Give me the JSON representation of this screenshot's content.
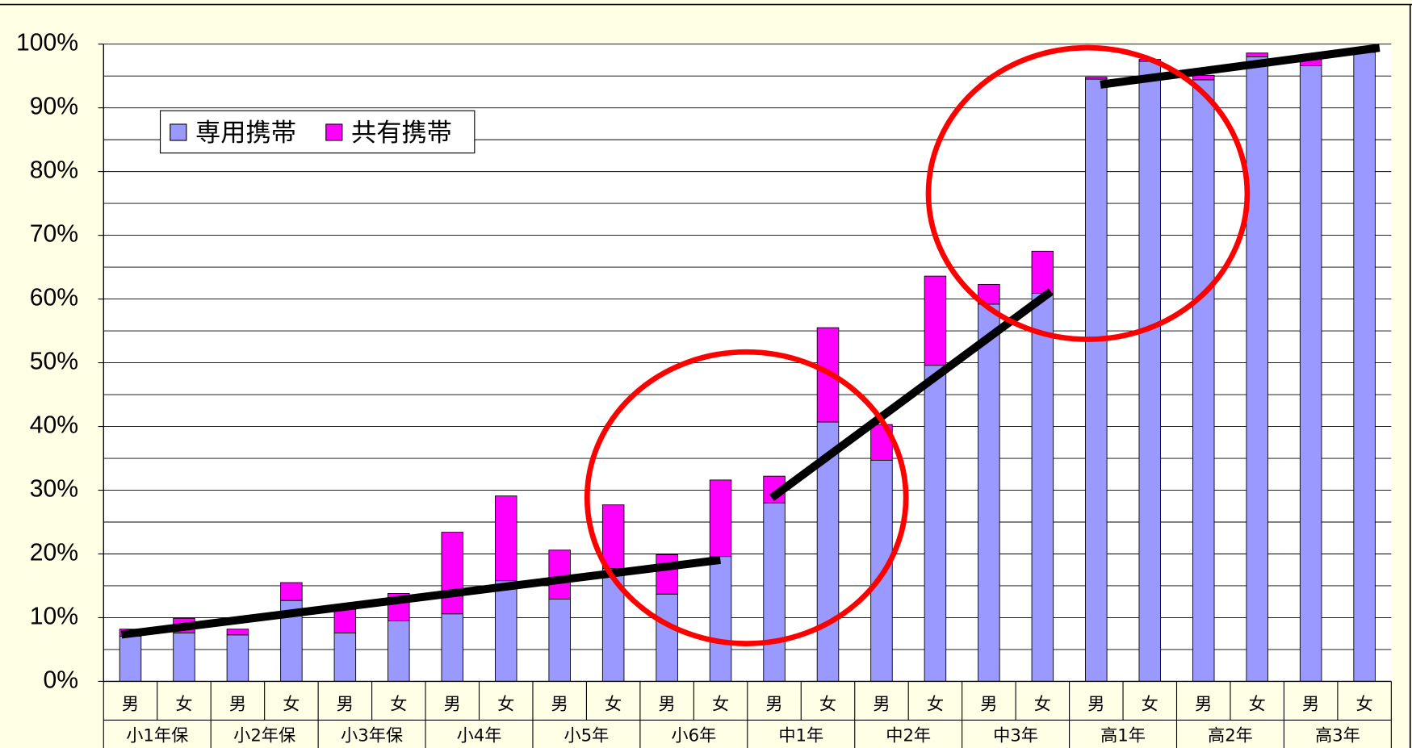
{
  "chart_data": {
    "type": "stacked_bar",
    "categories": [
      "男",
      "女",
      "男",
      "女",
      "男",
      "女",
      "男",
      "女",
      "男",
      "女",
      "男",
      "女",
      "男",
      "女",
      "男",
      "女",
      "男",
      "女",
      "男",
      "女",
      "男",
      "女",
      "男",
      "女"
    ],
    "groups": [
      "小1年保",
      "小2年保",
      "小3年保",
      "小4年",
      "小5年",
      "小6年",
      "中1年",
      "中2年",
      "中3年",
      "高1年",
      "高2年",
      "高3年"
    ],
    "series": [
      {
        "name": "専用携帯",
        "color": "#9999ff",
        "values": [
          7.1,
          7.6,
          7.3,
          12.7,
          7.6,
          9.5,
          10.6,
          15.8,
          12.9,
          17.7,
          13.7,
          19.6,
          28.0,
          40.7,
          34.7,
          49.6,
          59.2,
          60.9,
          94.5,
          97.3,
          94.4,
          98.0,
          96.6,
          98.7
        ]
      },
      {
        "name": "共有携帯",
        "color": "#ff00ff",
        "values": [
          1.1,
          2.3,
          0.9,
          2.8,
          3.7,
          4.3,
          12.8,
          13.3,
          7.7,
          10.0,
          6.2,
          12.0,
          4.2,
          14.8,
          5.6,
          14.0,
          3.1,
          6.6,
          0.3,
          0.3,
          0.7,
          0.6,
          1.0,
          0.2
        ]
      }
    ],
    "ylim": [
      0,
      100
    ],
    "yticks": [
      {
        "value": 0,
        "label": "0%"
      },
      {
        "value": 10,
        "label": "10%"
      },
      {
        "value": 20,
        "label": "20%"
      },
      {
        "value": 30,
        "label": "30%"
      },
      {
        "value": 40,
        "label": "40%"
      },
      {
        "value": 50,
        "label": "50%"
      },
      {
        "value": 60,
        "label": "60%"
      },
      {
        "value": 70,
        "label": "70%"
      },
      {
        "value": 80,
        "label": "80%"
      },
      {
        "value": 90,
        "label": "90%"
      },
      {
        "value": 100,
        "label": "100%"
      }
    ],
    "minor_yticks": [
      5,
      15,
      25,
      35,
      45,
      55,
      65,
      75,
      85,
      95
    ],
    "grid": true,
    "legend": "top-left"
  }
}
